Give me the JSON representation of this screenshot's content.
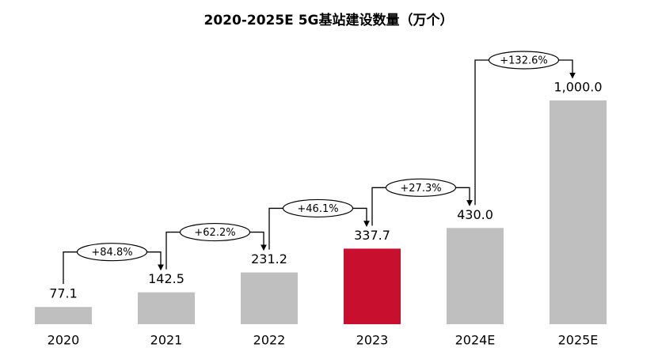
{
  "chart_data": {
    "type": "bar",
    "title": "2020-2025E 5G基站建设数量（万个）",
    "categories": [
      "2020",
      "2021",
      "2022",
      "2023",
      "2024E",
      "2025E"
    ],
    "values": [
      77.1,
      142.5,
      231.2,
      337.7,
      430.0,
      1000.0
    ],
    "value_labels": [
      "77.1",
      "142.5",
      "231.2",
      "337.7",
      "430.0",
      "1,000.0"
    ],
    "colors": [
      "#bfbfbf",
      "#bfbfbf",
      "#bfbfbf",
      "#c8102e",
      "#bfbfbf",
      "#bfbfbf"
    ],
    "annotations": [
      "+84.8%",
      "+62.2%",
      "+46.1%",
      "+27.3%",
      "+132.6%"
    ]
  }
}
